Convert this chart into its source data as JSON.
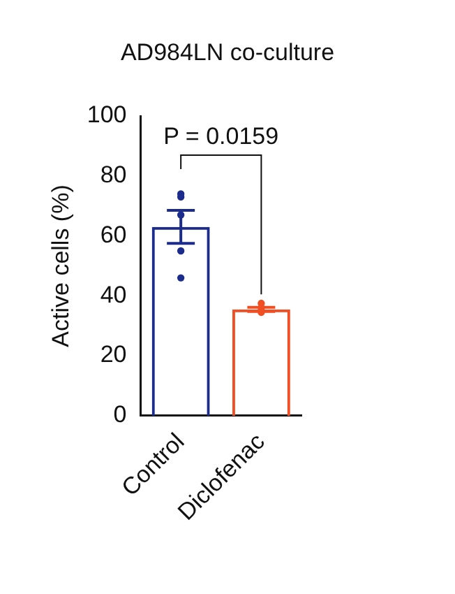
{
  "chart_data": {
    "type": "bar",
    "title": "AD984LN co-culture",
    "ylabel": "Active cells (%)",
    "categories": [
      "Control",
      "Diclofenac"
    ],
    "series": [
      {
        "values": [
          63,
          35.5
        ],
        "colors": [
          "#1c2c8c",
          "#f04e23"
        ],
        "errors": [
          5.5,
          0.7
        ]
      },
      {
        "type": "scatter",
        "x": [
          "Control",
          "Control",
          "Control",
          "Control",
          "Control",
          "Diclofenac",
          "Diclofenac",
          "Diclofenac"
        ],
        "values": [
          74,
          73,
          67,
          55,
          46,
          37.5,
          36,
          34.5
        ],
        "colors": [
          "#1c2c8c",
          "#1c2c8c",
          "#1c2c8c",
          "#1c2c8c",
          "#1c2c8c",
          "#f04e23",
          "#f04e23",
          "#f04e23"
        ]
      }
    ],
    "ylim": [
      0,
      100
    ],
    "yticks": [
      0,
      20,
      40,
      60,
      80,
      100
    ],
    "grid": false,
    "legend": false,
    "annotations": [
      "P = 0.0159"
    ]
  }
}
